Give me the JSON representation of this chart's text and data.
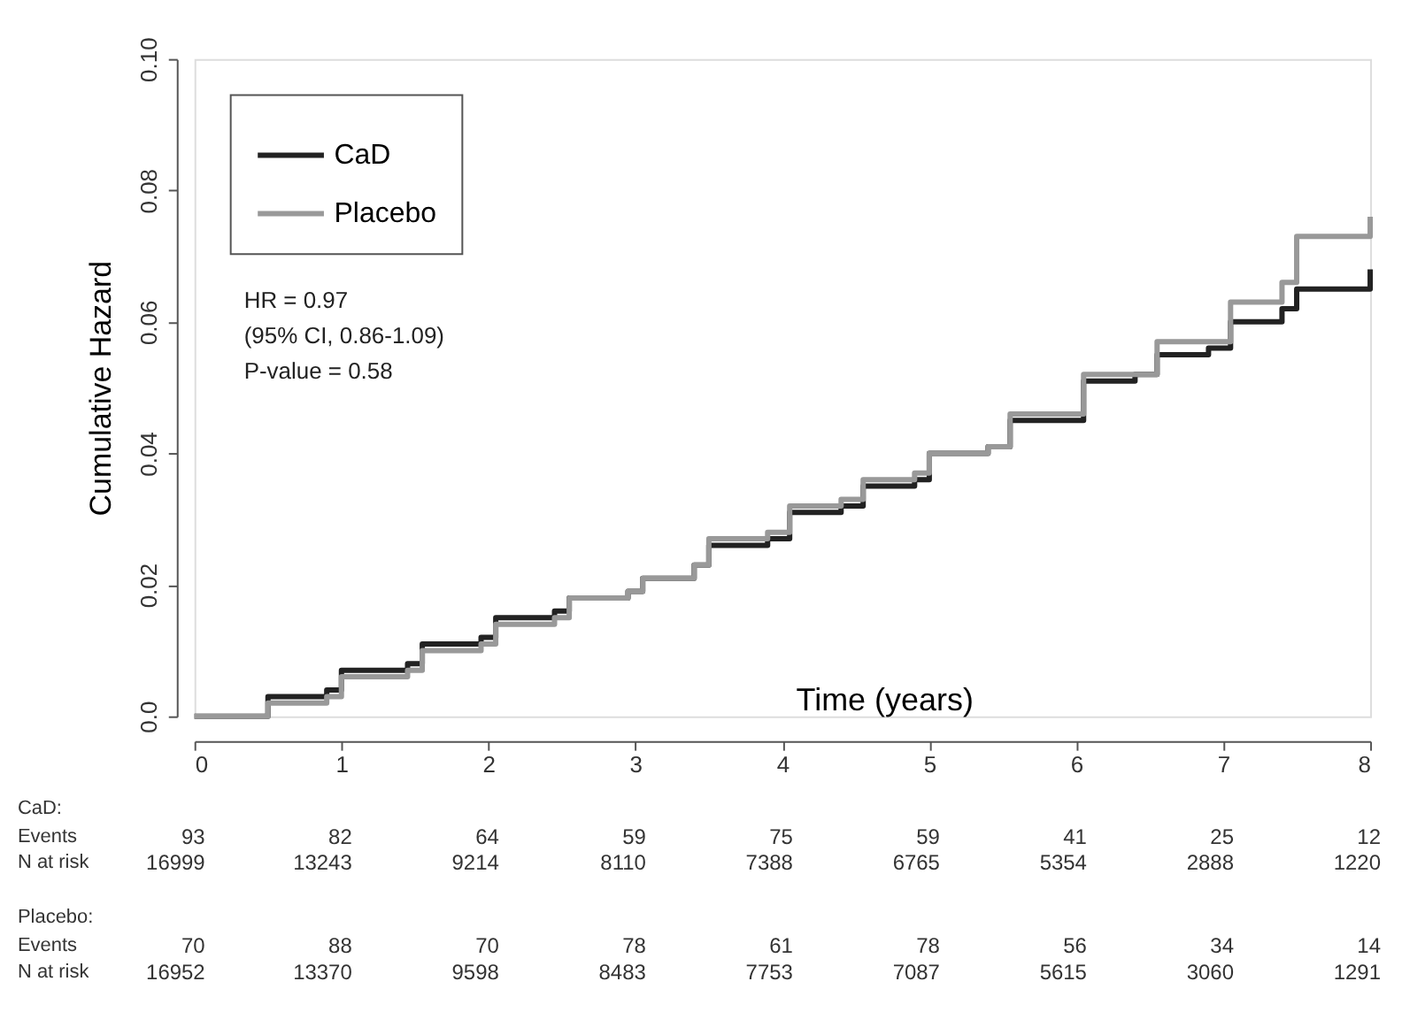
{
  "chart_data": {
    "type": "step",
    "xlabel": "Time (years)",
    "ylabel": "Cumulative Hazard",
    "x": [
      0,
      0.35,
      0.5,
      0.9,
      1.0,
      1.45,
      1.55,
      1.95,
      2.05,
      2.45,
      2.55,
      2.95,
      3.05,
      3.4,
      3.5,
      3.9,
      4.05,
      4.4,
      4.55,
      4.9,
      5.0,
      5.4,
      5.55,
      5.9,
      6.05,
      6.4,
      6.55,
      6.9,
      7.05,
      7.4,
      7.5,
      7.95,
      8.0
    ],
    "series": [
      {
        "name": "CaD",
        "color": "#222222",
        "values": [
          0,
          0,
          0.003,
          0.004,
          0.007,
          0.008,
          0.011,
          0.012,
          0.015,
          0.016,
          0.018,
          0.019,
          0.021,
          0.023,
          0.026,
          0.027,
          0.031,
          0.032,
          0.035,
          0.036,
          0.04,
          0.041,
          0.045,
          0.045,
          0.051,
          0.052,
          0.055,
          0.056,
          0.06,
          0.062,
          0.065,
          0.065,
          0.068
        ]
      },
      {
        "name": "Placebo",
        "color": "#999999",
        "values": [
          0,
          0,
          0.002,
          0.003,
          0.006,
          0.007,
          0.01,
          0.011,
          0.014,
          0.015,
          0.018,
          0.019,
          0.021,
          0.023,
          0.027,
          0.028,
          0.032,
          0.033,
          0.036,
          0.037,
          0.04,
          0.041,
          0.046,
          0.046,
          0.052,
          0.052,
          0.057,
          0.057,
          0.063,
          0.066,
          0.073,
          0.073,
          0.076
        ]
      }
    ],
    "xlim": [
      0,
      8
    ],
    "xticks": [
      0,
      1,
      2,
      3,
      4,
      5,
      6,
      7,
      8
    ],
    "ylim": [
      0,
      0.1
    ],
    "yticks": [
      {
        "value": 0,
        "label": "0.0"
      },
      0.02,
      0.04,
      0.06,
      0.08,
      {
        "value": 0.1,
        "label": "0.10"
      }
    ],
    "legend": "top left",
    "grid": false,
    "marker": "none",
    "line_style": "solid",
    "annotations": [
      "HR = 0.97",
      "(95% CI, 0.86-1.09)",
      "P-value = 0.58",
      "CaD:",
      "Events",
      "93 82 64 59 75 59 41 25 12",
      "N at risk",
      "16999 13243 9214 8110 7388 6765 5354 2888 1220",
      "Placebo:",
      "Events",
      "70 88 70 78 61 78 56 34 14",
      "N at risk",
      "16952 13370 9598 8483 7753 7087 5615 3060 1291"
    ]
  }
}
